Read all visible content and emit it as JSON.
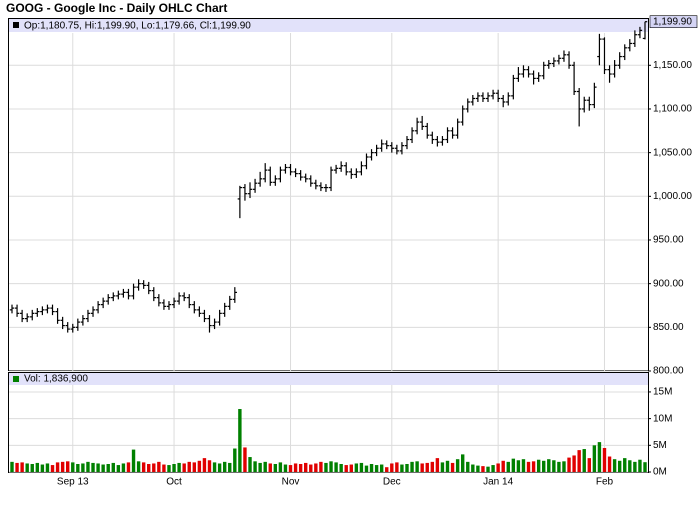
{
  "chart_data": {
    "type": "ohlc",
    "title": "GOOG - Google Inc - Daily OHLC Chart",
    "legend_text": "Op:1,180.75, Hi:1,199.90, Lo:1,179.66, Cl:1,199.90",
    "last_label": "1,199.90",
    "color": "#000000",
    "grid": true,
    "categories": [
      null,
      null,
      null,
      null,
      null,
      null,
      null,
      null,
      null,
      null,
      null,
      null,
      "Sep 13",
      null,
      null,
      null,
      null,
      null,
      null,
      null,
      null,
      null,
      null,
      null,
      null,
      null,
      null,
      null,
      null,
      null,
      null,
      null,
      "Oct",
      null,
      null,
      null,
      null,
      null,
      null,
      null,
      null,
      null,
      null,
      null,
      null,
      null,
      null,
      null,
      null,
      null,
      null,
      null,
      null,
      null,
      null,
      "Nov",
      null,
      null,
      null,
      null,
      null,
      null,
      null,
      null,
      null,
      null,
      null,
      null,
      null,
      null,
      null,
      null,
      null,
      null,
      null,
      "Dec",
      null,
      null,
      null,
      null,
      null,
      null,
      null,
      null,
      null,
      null,
      null,
      null,
      null,
      null,
      null,
      null,
      null,
      null,
      null,
      null,
      "Jan 14",
      null,
      null,
      null,
      null,
      null,
      null,
      null,
      null,
      null,
      null,
      null,
      null,
      null,
      null,
      null,
      null,
      null,
      null,
      null,
      null,
      "Feb",
      null,
      null,
      null,
      null,
      null,
      null,
      null,
      null
    ],
    "open": [
      870,
      872,
      866,
      860,
      862,
      866,
      868,
      870,
      872,
      868,
      858,
      852,
      848,
      850,
      856,
      860,
      866,
      870,
      876,
      880,
      884,
      886,
      888,
      890,
      886,
      896,
      900,
      898,
      892,
      884,
      878,
      874,
      876,
      880,
      886,
      884,
      876,
      870,
      866,
      860,
      852,
      856,
      866,
      874,
      882,
      997,
      1010,
      1003,
      1008,
      1015,
      1020,
      1030,
      1016,
      1020,
      1030,
      1033,
      1028,
      1026,
      1022,
      1020,
      1015,
      1012,
      1010,
      1010,
      1030,
      1032,
      1035,
      1028,
      1025,
      1028,
      1035,
      1045,
      1050,
      1055,
      1060,
      1058,
      1055,
      1052,
      1058,
      1065,
      1075,
      1085,
      1080,
      1070,
      1065,
      1062,
      1065,
      1075,
      1070,
      1085,
      1100,
      1108,
      1112,
      1115,
      1112,
      1115,
      1118,
      1112,
      1108,
      1115,
      1135,
      1140,
      1145,
      1140,
      1135,
      1138,
      1150,
      1152,
      1155,
      1158,
      1162,
      1150,
      1120,
      1100,
      1110,
      1105,
      1160,
      1180,
      1145,
      1140,
      1150,
      1160,
      1170,
      1175,
      1185,
      1180.75
    ],
    "high": [
      876,
      876,
      870,
      866,
      870,
      872,
      874,
      876,
      876,
      872,
      862,
      856,
      854,
      860,
      864,
      870,
      874,
      880,
      884,
      888,
      890,
      892,
      894,
      894,
      900,
      905,
      904,
      902,
      896,
      888,
      882,
      880,
      884,
      890,
      890,
      888,
      880,
      874,
      870,
      864,
      860,
      870,
      878,
      886,
      896,
      1012,
      1014,
      1016,
      1020,
      1028,
      1038,
      1034,
      1024,
      1034,
      1037,
      1037,
      1032,
      1030,
      1026,
      1024,
      1019,
      1016,
      1014,
      1034,
      1036,
      1040,
      1039,
      1032,
      1032,
      1040,
      1049,
      1054,
      1059,
      1065,
      1064,
      1062,
      1059,
      1062,
      1069,
      1079,
      1090,
      1092,
      1084,
      1074,
      1069,
      1069,
      1079,
      1079,
      1089,
      1104,
      1112,
      1116,
      1119,
      1119,
      1119,
      1122,
      1122,
      1116,
      1119,
      1139,
      1148,
      1150,
      1149,
      1144,
      1142,
      1154,
      1156,
      1159,
      1162,
      1167,
      1166,
      1154,
      1124,
      1114,
      1114,
      1130,
      1186,
      1182,
      1150,
      1156,
      1165,
      1174,
      1180,
      1190,
      1194,
      1199.9
    ],
    "low": [
      866,
      862,
      856,
      856,
      858,
      862,
      864,
      866,
      864,
      854,
      848,
      844,
      844,
      846,
      852,
      856,
      862,
      866,
      872,
      876,
      880,
      882,
      884,
      882,
      882,
      892,
      894,
      888,
      880,
      874,
      870,
      870,
      872,
      876,
      880,
      872,
      866,
      862,
      856,
      844,
      848,
      852,
      862,
      870,
      878,
      975,
      995,
      998,
      1004,
      1011,
      1016,
      1012,
      1012,
      1016,
      1026,
      1024,
      1022,
      1018,
      1016,
      1011,
      1008,
      1006,
      1005,
      1006,
      1026,
      1028,
      1024,
      1020,
      1021,
      1024,
      1031,
      1041,
      1046,
      1051,
      1054,
      1050,
      1048,
      1048,
      1054,
      1061,
      1071,
      1076,
      1066,
      1060,
      1057,
      1058,
      1061,
      1066,
      1066,
      1081,
      1096,
      1104,
      1108,
      1108,
      1108,
      1111,
      1108,
      1102,
      1104,
      1111,
      1131,
      1136,
      1136,
      1128,
      1131,
      1134,
      1146,
      1148,
      1151,
      1154,
      1146,
      1116,
      1080,
      1096,
      1098,
      1101,
      1150,
      1140,
      1130,
      1136,
      1146,
      1156,
      1166,
      1171,
      1181,
      1179.66
    ],
    "close": [
      872,
      866,
      860,
      862,
      866,
      868,
      870,
      872,
      868,
      858,
      852,
      848,
      850,
      856,
      860,
      866,
      870,
      876,
      880,
      884,
      886,
      888,
      890,
      886,
      896,
      900,
      898,
      892,
      884,
      878,
      874,
      876,
      880,
      886,
      884,
      876,
      870,
      866,
      860,
      852,
      856,
      866,
      874,
      882,
      890,
      1010,
      1003,
      1008,
      1015,
      1020,
      1030,
      1016,
      1020,
      1030,
      1033,
      1028,
      1026,
      1022,
      1020,
      1015,
      1012,
      1010,
      1010,
      1030,
      1032,
      1035,
      1028,
      1025,
      1028,
      1035,
      1045,
      1050,
      1055,
      1060,
      1058,
      1055,
      1052,
      1058,
      1065,
      1075,
      1085,
      1080,
      1070,
      1065,
      1062,
      1065,
      1075,
      1070,
      1085,
      1100,
      1108,
      1112,
      1115,
      1112,
      1115,
      1118,
      1112,
      1108,
      1115,
      1135,
      1140,
      1145,
      1140,
      1135,
      1138,
      1150,
      1152,
      1155,
      1158,
      1162,
      1150,
      1120,
      1100,
      1110,
      1105,
      1125,
      1180,
      1145,
      1140,
      1150,
      1160,
      1170,
      1175,
      1185,
      1190,
      1199.9
    ],
    "ylim": [
      800,
      1203
    ],
    "yticks": [
      {
        "value": 800,
        "label": "800.00"
      },
      {
        "value": 850,
        "label": "850.00"
      },
      {
        "value": 900,
        "label": "900.00"
      },
      {
        "value": 950,
        "label": "950.00"
      },
      {
        "value": 1000,
        "label": "1,000.00"
      },
      {
        "value": 1050,
        "label": "1,050.00"
      },
      {
        "value": 1100,
        "label": "1,100.00"
      },
      {
        "value": 1150,
        "label": "1,150.00"
      }
    ],
    "volume": {
      "type": "bar",
      "legend_text": "Vol: 1,836,900",
      "up_color": "#008000",
      "down_color": "#e00000",
      "values": [
        1.9,
        1.7,
        1.8,
        1.6,
        1.5,
        1.7,
        1.4,
        1.6,
        1.3,
        1.8,
        1.9,
        2.0,
        1.8,
        1.5,
        1.6,
        1.9,
        1.7,
        1.6,
        1.4,
        1.5,
        1.7,
        1.3,
        1.6,
        1.8,
        4.2,
        2.0,
        1.8,
        1.5,
        1.6,
        1.9,
        1.4,
        1.3,
        1.5,
        1.7,
        1.6,
        1.9,
        1.8,
        2.1,
        2.6,
        2.2,
        1.8,
        1.6,
        1.9,
        1.7,
        4.4,
        11.8,
        4.6,
        2.8,
        2.0,
        1.7,
        1.9,
        1.6,
        1.5,
        1.8,
        1.4,
        1.3,
        1.6,
        1.5,
        1.7,
        1.4,
        1.6,
        1.9,
        1.7,
        2.0,
        1.8,
        1.5,
        1.3,
        1.4,
        1.6,
        1.7,
        1.2,
        1.5,
        1.3,
        1.4,
        0.9,
        1.6,
        1.8,
        1.4,
        1.5,
        1.9,
        2.0,
        1.6,
        1.7,
        1.9,
        2.6,
        1.8,
        2.1,
        1.7,
        2.4,
        3.3,
        1.9,
        1.4,
        1.2,
        1.1,
        1.0,
        1.3,
        1.6,
        2.1,
        1.9,
        2.5,
        2.2,
        2.4,
        1.9,
        2.0,
        2.3,
        2.1,
        2.4,
        2.2,
        1.9,
        2.0,
        2.7,
        3.1,
        4.1,
        4.3,
        2.6,
        5.0,
        5.6,
        4.5,
        2.9,
        2.4,
        2.1,
        2.6,
        2.2,
        1.9,
        2.3,
        1.8369
      ],
      "ylim": [
        0,
        16.3
      ],
      "yticks": [
        {
          "value": 0,
          "label": "0M"
        },
        {
          "value": 5,
          "label": "5M"
        },
        {
          "value": 10,
          "label": "10M"
        },
        {
          "value": 15,
          "label": "15M"
        }
      ]
    }
  }
}
